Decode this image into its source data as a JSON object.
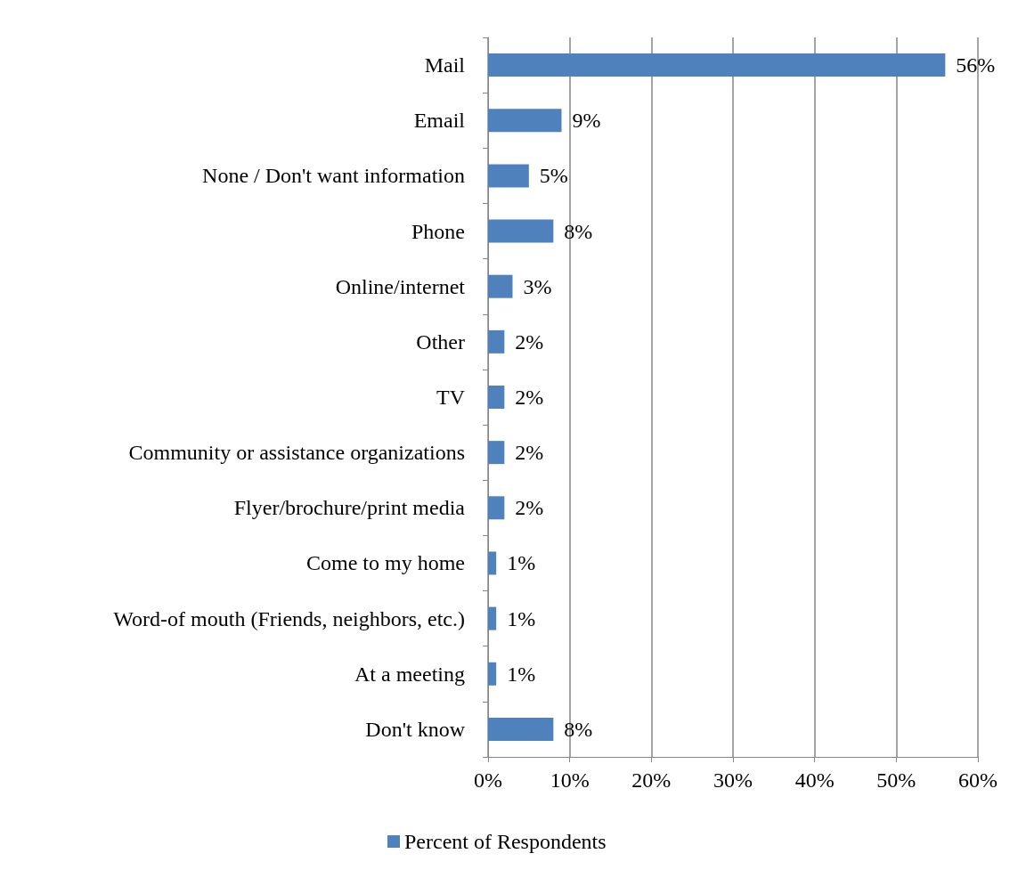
{
  "chart_data": {
    "type": "bar",
    "orientation": "horizontal",
    "categories": [
      "Mail",
      "Email",
      "None / Don't want information",
      "Phone",
      "Online/internet",
      "Other",
      "TV",
      "Community or assistance organizations",
      "Flyer/brochure/print media",
      "Come to my home",
      "Word-of mouth (Friends, neighbors, etc.)",
      "At a meeting",
      "Don't know"
    ],
    "series": [
      {
        "name": "Percent of Respondents",
        "color": "#4f81bd",
        "values": [
          56,
          9,
          5,
          8,
          3,
          2,
          2,
          2,
          2,
          1,
          1,
          1,
          8
        ],
        "value_labels": [
          "56%",
          "9%",
          "5%",
          "8%",
          "3%",
          "2%",
          "2%",
          "2%",
          "2%",
          "1%",
          "1%",
          "1%",
          "8%"
        ]
      }
    ],
    "xlim": [
      0,
      60
    ],
    "xticks": [
      {
        "value": 0,
        "label": "0%"
      },
      {
        "value": 10,
        "label": "10%"
      },
      {
        "value": 20,
        "label": "20%"
      },
      {
        "value": 30,
        "label": "30%"
      },
      {
        "value": 40,
        "label": "40%"
      },
      {
        "value": 50,
        "label": "50%"
      },
      {
        "value": 60,
        "label": "60%"
      }
    ],
    "grid": "x",
    "legend": "bottom"
  }
}
